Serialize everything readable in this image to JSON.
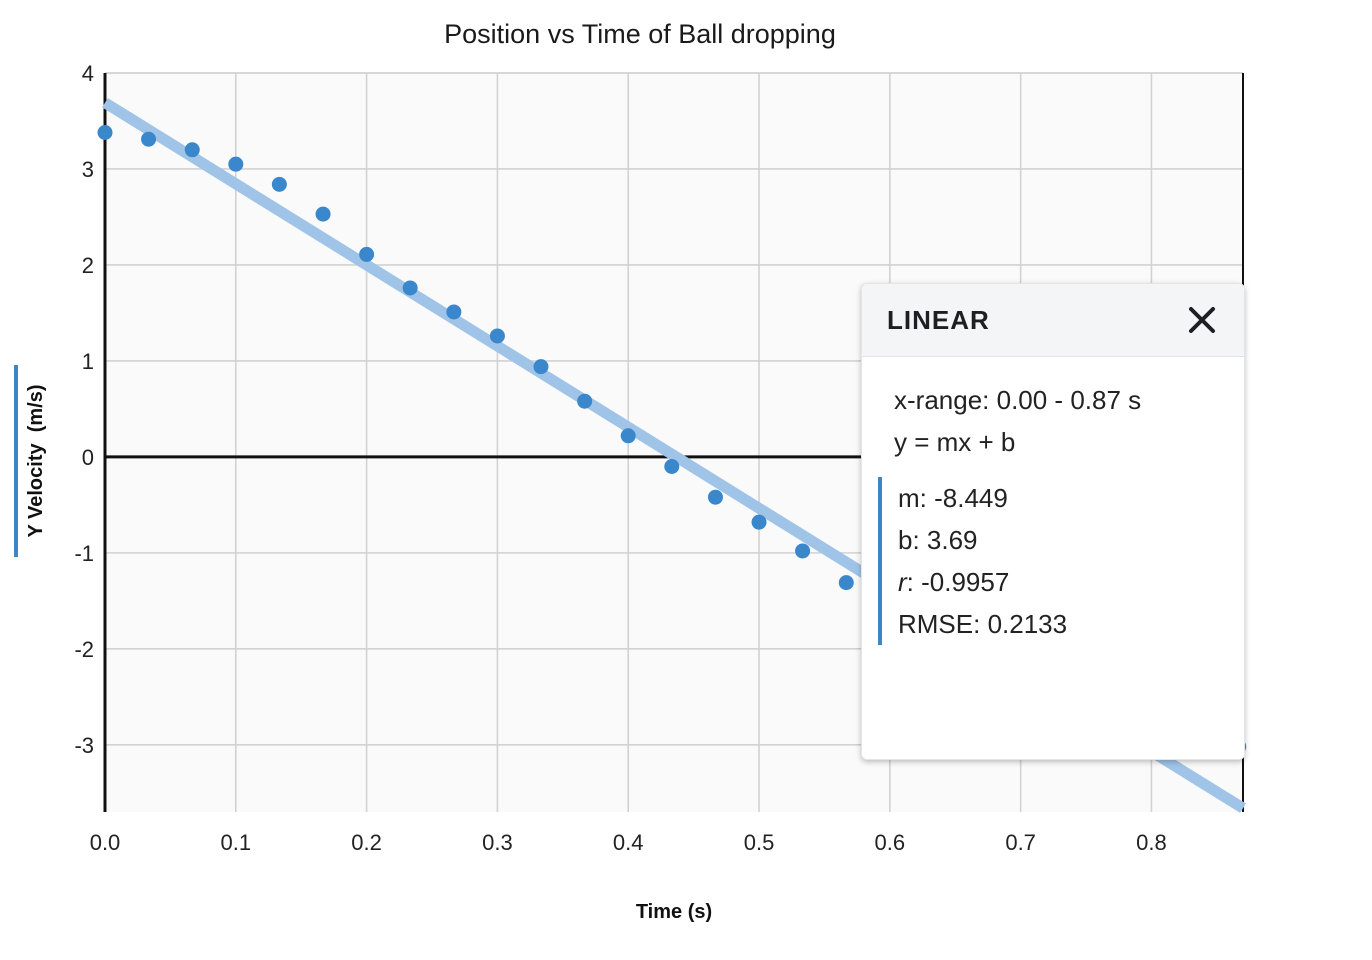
{
  "chart_data": {
    "type": "scatter",
    "title": "Position vs Time of Ball dropping",
    "xlabel": "Time (s)",
    "ylabel": "Y Velocity  (m/s)",
    "xlim": [
      0,
      0.87
    ],
    "ylim": [
      -3.7,
      4
    ],
    "x_ticks": [
      "0.0",
      "0.1",
      "0.2",
      "0.3",
      "0.4",
      "0.5",
      "0.6",
      "0.7",
      "0.8"
    ],
    "y_ticks": [
      "4",
      "3",
      "2",
      "1",
      "0",
      "-1",
      "-2",
      "-3"
    ],
    "grid": true,
    "colors": {
      "points": "#3a87cc",
      "fit_line": "#a0c4e8",
      "plot_bg": "#fafafa",
      "grid": "#d2d2d2"
    },
    "series": [
      {
        "x": [
          0.0,
          0.0333,
          0.0667,
          0.1,
          0.1333,
          0.1667,
          0.2,
          0.2333,
          0.2667,
          0.3,
          0.3333,
          0.3667,
          0.4,
          0.4333,
          0.4667,
          0.5,
          0.5333,
          0.5667,
          0.8667
        ],
        "y": [
          3.38,
          3.31,
          3.2,
          3.05,
          2.84,
          2.53,
          2.11,
          1.76,
          1.51,
          1.26,
          0.94,
          0.58,
          0.22,
          -0.1,
          -0.42,
          -0.68,
          -0.98,
          -1.31,
          -3.02
        ]
      }
    ],
    "fit": {
      "m": -8.449,
      "b": 3.69,
      "x_start": 0,
      "x_end": 0.87
    }
  },
  "fit_panel": {
    "title": "LINEAR",
    "x_range": "x-range: 0.00 - 0.87 s",
    "equation": "y = mx + b",
    "m": "m: -8.449",
    "b": "b: 3.69",
    "r_key": "r",
    "r_value": ": -0.9957",
    "rmse": "RMSE: 0.2133",
    "close_icon": "close-icon"
  }
}
